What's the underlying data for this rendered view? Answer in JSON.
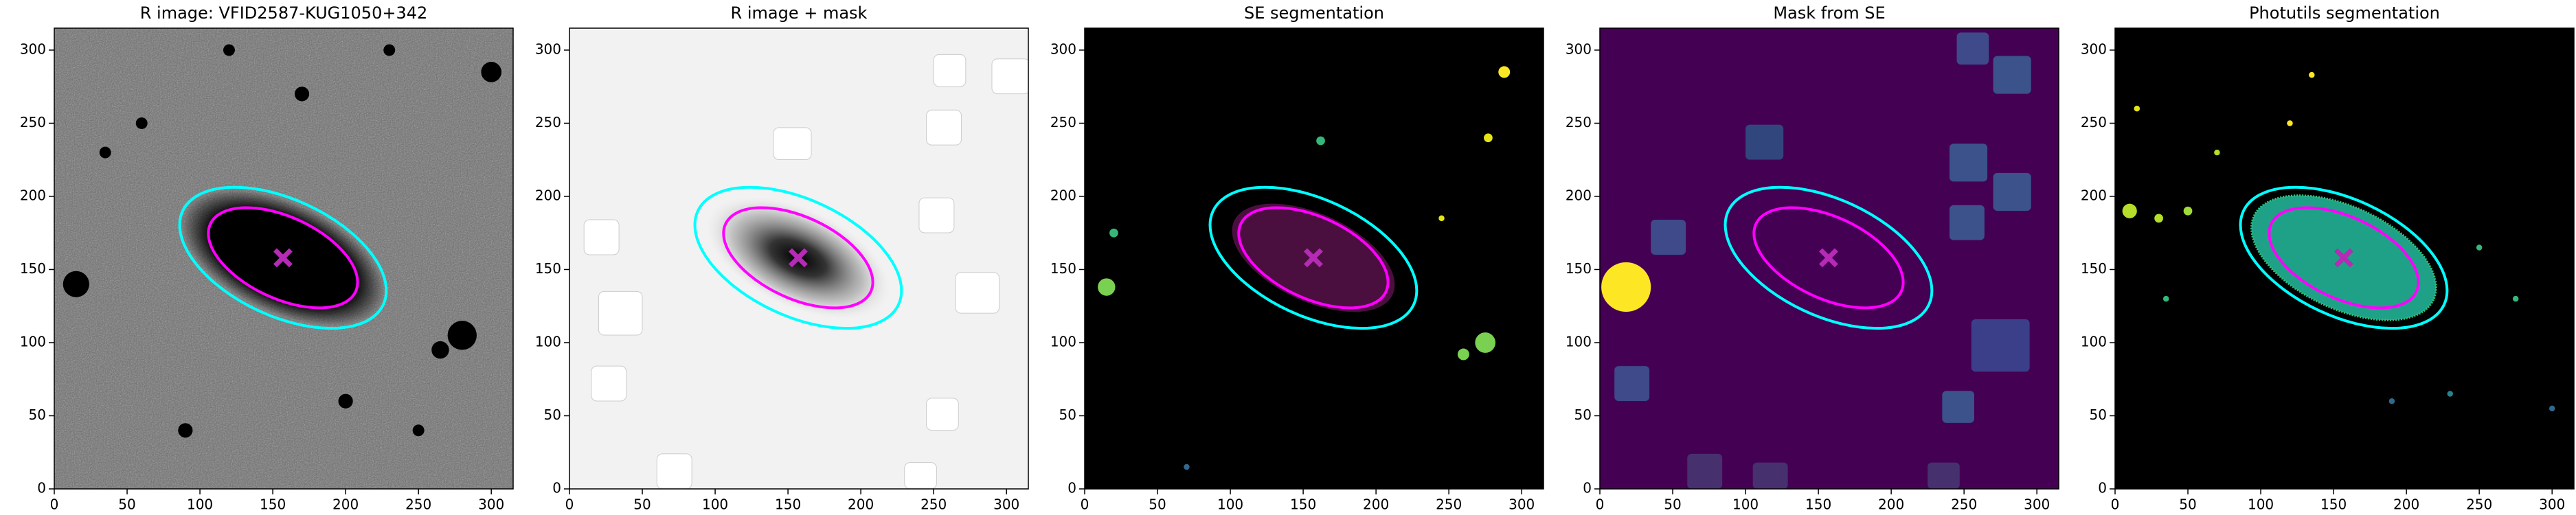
{
  "chart_data": [
    {
      "type": "image",
      "title": "R image: VFID2587-KUG1050+342",
      "colormap": "gray",
      "background": "#6e6e6e",
      "xlim": [
        0,
        315
      ],
      "ylim": [
        0,
        315
      ],
      "xticks": [
        0,
        50,
        100,
        150,
        200,
        250,
        300
      ],
      "yticks": [
        0,
        50,
        100,
        150,
        200,
        250,
        300
      ],
      "ellipses": [
        {
          "color": "#ff00ff",
          "x": 157,
          "y": 158,
          "a": 55,
          "b": 28,
          "angle": -25
        },
        {
          "color": "#00ffff",
          "x": 157,
          "y": 158,
          "a": 76,
          "b": 40,
          "angle": -25
        }
      ],
      "marker": {
        "color": "#b52bb5",
        "x": 157,
        "y": 158
      }
    },
    {
      "type": "image",
      "title": "R image + mask",
      "colormap": "gray_r",
      "background": "#f2f2f2",
      "xlim": [
        0,
        315
      ],
      "ylim": [
        0,
        315
      ],
      "xticks": [
        0,
        50,
        100,
        150,
        200,
        250,
        300
      ],
      "yticks": [
        0,
        50,
        100,
        150,
        200,
        250,
        300
      ],
      "ellipses": [
        {
          "color": "#ff00ff",
          "x": 157,
          "y": 158,
          "a": 55,
          "b": 28,
          "angle": -25
        },
        {
          "color": "#00ffff",
          "x": 157,
          "y": 158,
          "a": 76,
          "b": 40,
          "angle": -25
        }
      ],
      "marker": {
        "color": "#b52bb5",
        "x": 157,
        "y": 158
      }
    },
    {
      "type": "image",
      "title": "SE segmentation",
      "colormap": "segmentation",
      "background": "#000000",
      "xlim": [
        0,
        315
      ],
      "ylim": [
        0,
        315
      ],
      "xticks": [
        0,
        50,
        100,
        150,
        200,
        250,
        300
      ],
      "yticks": [
        0,
        50,
        100,
        150,
        200,
        250,
        300
      ],
      "ellipses": [
        {
          "color": "#ff00ff",
          "x": 157,
          "y": 158,
          "a": 55,
          "b": 28,
          "angle": -25
        },
        {
          "color": "#00ffff",
          "x": 157,
          "y": 158,
          "a": 76,
          "b": 40,
          "angle": -25
        }
      ],
      "marker": {
        "color": "#b52bb5",
        "x": 157,
        "y": 158
      }
    },
    {
      "type": "image",
      "title": "Mask from SE",
      "colormap": "viridis",
      "background": "#440154",
      "xlim": [
        0,
        315
      ],
      "ylim": [
        0,
        315
      ],
      "xticks": [
        0,
        50,
        100,
        150,
        200,
        250,
        300
      ],
      "yticks": [
        0,
        50,
        100,
        150,
        200,
        250,
        300
      ],
      "ellipses": [
        {
          "color": "#ff00ff",
          "x": 157,
          "y": 158,
          "a": 55,
          "b": 28,
          "angle": -25
        },
        {
          "color": "#00ffff",
          "x": 157,
          "y": 158,
          "a": 76,
          "b": 40,
          "angle": -25
        }
      ],
      "marker": {
        "color": "#b52bb5",
        "x": 157,
        "y": 158
      }
    },
    {
      "type": "image",
      "title": "Photutils segmentation",
      "colormap": "segmentation",
      "background": "#000000",
      "xlim": [
        0,
        315
      ],
      "ylim": [
        0,
        315
      ],
      "xticks": [
        0,
        50,
        100,
        150,
        200,
        250,
        300
      ],
      "yticks": [
        0,
        50,
        100,
        150,
        200,
        250,
        300
      ],
      "ellipses": [
        {
          "color": "#ff00ff",
          "x": 157,
          "y": 158,
          "a": 55,
          "b": 28,
          "angle": -25
        },
        {
          "color": "#00ffff",
          "x": 157,
          "y": 158,
          "a": 76,
          "b": 40,
          "angle": -25
        }
      ],
      "marker": {
        "color": "#b52bb5",
        "x": 157,
        "y": 158
      }
    }
  ]
}
